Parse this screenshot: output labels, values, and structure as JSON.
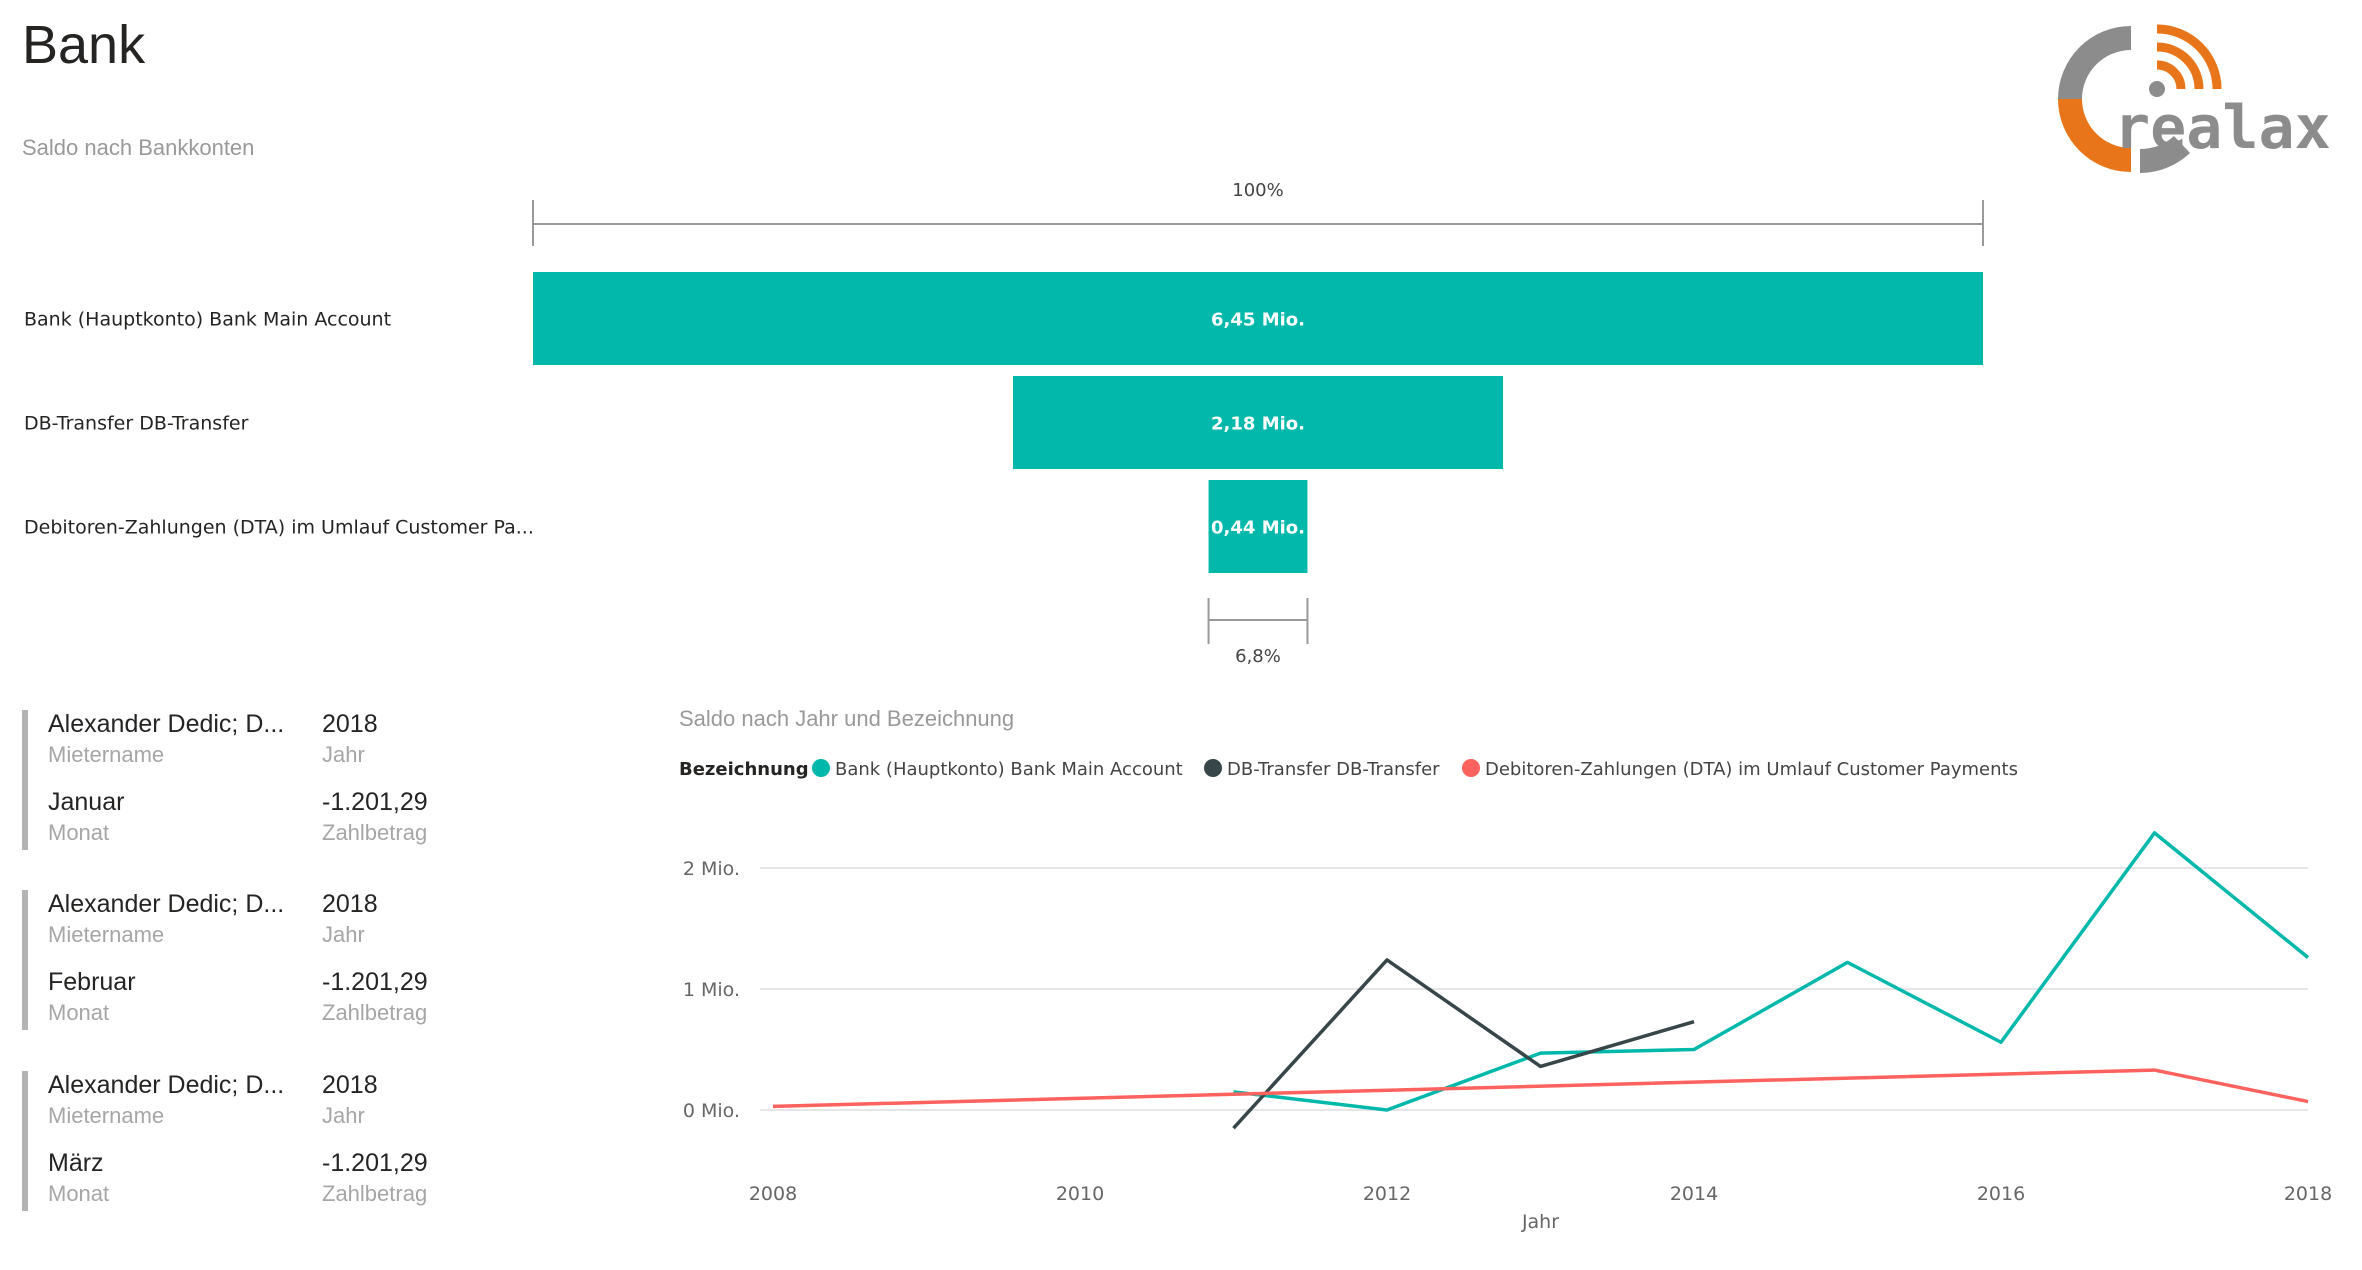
{
  "page": {
    "title": "Bank"
  },
  "colors": {
    "teal": "#01b8aa",
    "dark": "#374649",
    "red": "#fd625e",
    "logo_orange": "#e8751a",
    "logo_gray": "#8c8c8c",
    "card_bar": "#b3b3b3"
  },
  "logo": {
    "text": "realax",
    "icon": "rss-feed-icon"
  },
  "chart_data": [
    {
      "type": "bar",
      "subtype": "funnel",
      "title": "Saldo nach Bankkonten",
      "categories": [
        "Bank (Hauptkonto) Bank Main Account",
        "DB-Transfer DB-Transfer",
        "Debitoren-Zahlungen (DTA) im Umlauf Customer Pa..."
      ],
      "values": [
        6.45,
        2.18,
        0.44
      ],
      "value_labels": [
        "6,45 Mio.",
        "2,18 Mio.",
        "0,44 Mio."
      ],
      "unit": "Mio.",
      "top_percent_label": "100%",
      "bottom_percent_label": "6,8%",
      "color": "#01b8aa"
    },
    {
      "type": "line",
      "title": "Saldo nach Jahr und Bezeichnung",
      "legend_title": "Bezeichnung",
      "legend_position": "top-left",
      "xlabel": "Jahr",
      "ylabel": "",
      "xlim": [
        2008,
        2018
      ],
      "ylim": [
        -0.3,
        2.6
      ],
      "x_ticks": [
        2008,
        2010,
        2012,
        2014,
        2016,
        2018
      ],
      "y_ticks": [
        0,
        1,
        2
      ],
      "y_tick_labels": [
        "0 Mio.",
        "1 Mio.",
        "2 Mio."
      ],
      "grid": "horizontal",
      "series": [
        {
          "name": "Bank (Hauptkonto) Bank Main Account",
          "color": "#01b8aa",
          "x": [
            2011,
            2012,
            2013,
            2014,
            2015,
            2016,
            2017,
            2018
          ],
          "y": [
            0.15,
            0.0,
            0.47,
            0.5,
            1.22,
            0.56,
            2.29,
            1.26
          ]
        },
        {
          "name": "DB-Transfer DB-Transfer",
          "color": "#374649",
          "x": [
            2011,
            2012,
            2013,
            2014
          ],
          "y": [
            -0.15,
            1.24,
            0.36,
            0.73
          ]
        },
        {
          "name": "Debitoren-Zahlungen (DTA) im Umlauf Customer Payments",
          "color": "#fd625e",
          "x": [
            2008,
            2017,
            2018
          ],
          "y": [
            0.03,
            0.33,
            0.07
          ]
        }
      ]
    }
  ],
  "cards": [
    {
      "tenant": "Alexander Dedic; D...",
      "tenant_label": "Mietername",
      "year": "2018",
      "year_label": "Jahr",
      "month": "Januar",
      "month_label": "Monat",
      "amount": "-1.201,29",
      "amount_label": "Zahlbetrag"
    },
    {
      "tenant": "Alexander Dedic; D...",
      "tenant_label": "Mietername",
      "year": "2018",
      "year_label": "Jahr",
      "month": "Februar",
      "month_label": "Monat",
      "amount": "-1.201,29",
      "amount_label": "Zahlbetrag"
    },
    {
      "tenant": "Alexander Dedic; D...",
      "tenant_label": "Mietername",
      "year": "2018",
      "year_label": "Jahr",
      "month": "März",
      "month_label": "Monat",
      "amount": "-1.201,29",
      "amount_label": "Zahlbetrag"
    }
  ]
}
